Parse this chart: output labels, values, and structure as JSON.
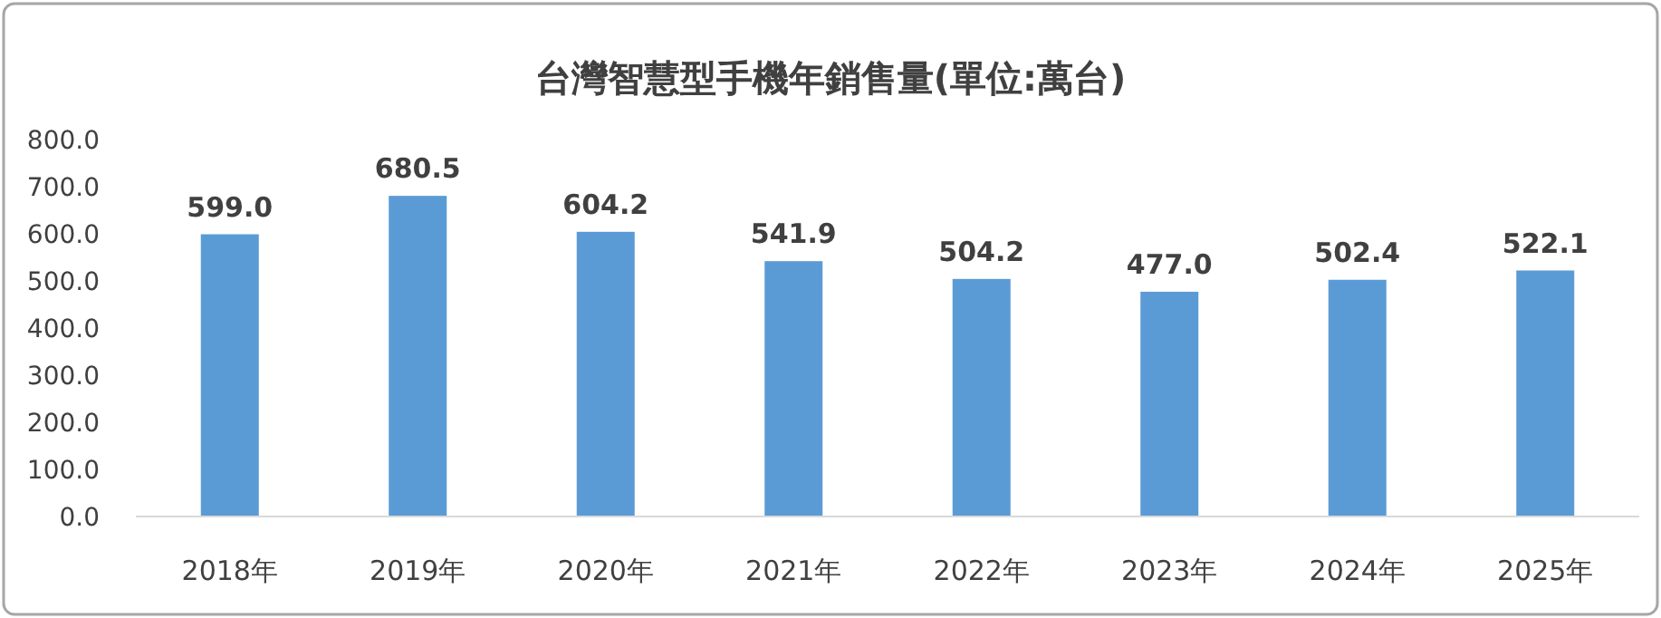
{
  "chart_data": {
    "type": "bar",
    "title": "台灣智慧型手機年銷售量(單位:萬台)",
    "categories": [
      "2018年",
      "2019年",
      "2020年",
      "2021年",
      "2022年",
      "2023年",
      "2024年",
      "2025年"
    ],
    "values": [
      599.0,
      680.5,
      604.2,
      541.9,
      504.2,
      477.0,
      502.4,
      522.1
    ],
    "value_labels": [
      "599.0",
      "680.5",
      "604.2",
      "541.9",
      "504.2",
      "477.0",
      "502.4",
      "522.1"
    ],
    "color": "#5b9bd5",
    "grid": false,
    "ylim": [
      0,
      800
    ],
    "yticks": [
      {
        "value": 0,
        "label": "0.0"
      },
      {
        "value": 100,
        "label": "100.0"
      },
      {
        "value": 200,
        "label": "200.0"
      },
      {
        "value": 300,
        "label": "300.0"
      },
      {
        "value": 400,
        "label": "400.0"
      },
      {
        "value": 500,
        "label": "500.0"
      },
      {
        "value": 600,
        "label": "600.0"
      },
      {
        "value": 700,
        "label": "700.0"
      },
      {
        "value": 800,
        "label": "800.0"
      }
    ]
  }
}
